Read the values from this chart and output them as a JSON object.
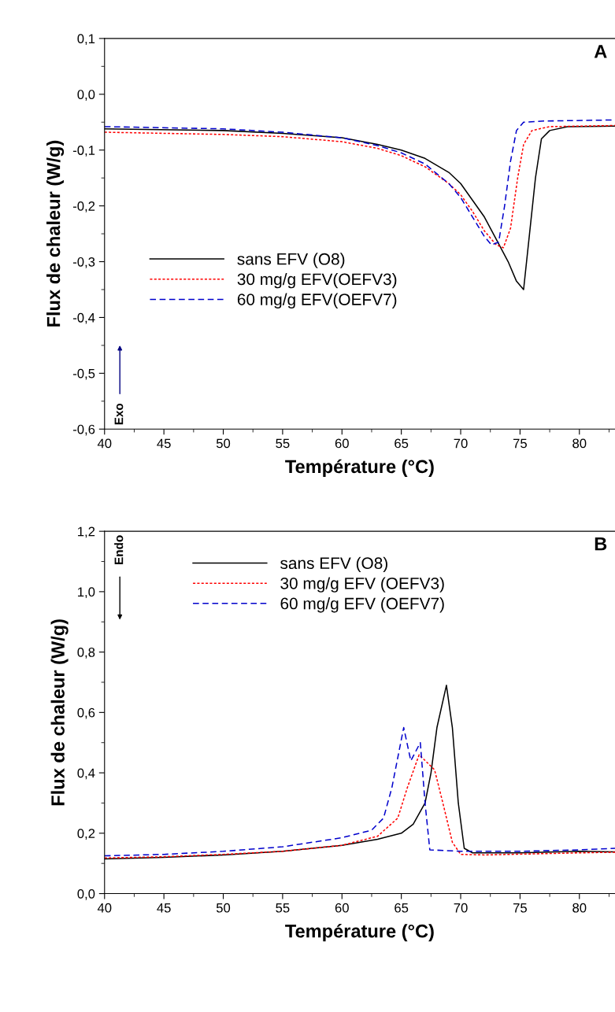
{
  "chart_data": [
    {
      "type": "line",
      "xlabel": "Température (°C)",
      "ylabel": "Flux de chaleur (W/g)",
      "xlim": [
        40,
        83
      ],
      "xticks": [
        40,
        45,
        50,
        55,
        60,
        65,
        70,
        75,
        80
      ],
      "ylim": [
        -0.6,
        0.1
      ],
      "yticks": [
        {
          "value": -0.6,
          "label": "-0,6"
        },
        {
          "value": -0.5,
          "label": "-0,5"
        },
        {
          "value": -0.4,
          "label": "-0,4"
        },
        {
          "value": -0.3,
          "label": "-0,3"
        },
        {
          "value": -0.2,
          "label": "-0,2"
        },
        {
          "value": -0.1,
          "label": "-0,1"
        },
        {
          "value": 0.0,
          "label": "0,0"
        },
        {
          "value": 0.1,
          "label": "0,1"
        }
      ],
      "legend": "center left",
      "grid": false,
      "annotations": [
        "A",
        "Exo"
      ],
      "series": [
        {
          "name": "sans EFV (O8)",
          "color": "#000000",
          "line_style": "solid",
          "x": [
            40,
            50,
            55,
            60,
            63,
            65,
            67,
            69,
            70,
            71,
            72,
            73,
            74,
            74.7,
            75.3,
            75.8,
            76.3,
            76.8,
            77.5,
            79,
            83
          ],
          "values": [
            -0.062,
            -0.065,
            -0.07,
            -0.078,
            -0.09,
            -0.1,
            -0.115,
            -0.14,
            -0.16,
            -0.19,
            -0.22,
            -0.26,
            -0.3,
            -0.335,
            -0.35,
            -0.25,
            -0.15,
            -0.08,
            -0.065,
            -0.058,
            -0.057
          ]
        },
        {
          "name": "30 mg/g EFV(OEFV3)",
          "color": "#ff0000",
          "line_style": "dotted",
          "x": [
            40,
            50,
            55,
            60,
            63,
            65,
            67,
            69,
            70,
            71,
            72,
            73,
            73.6,
            74.2,
            74.8,
            75.3,
            76,
            77.5,
            83
          ],
          "values": [
            -0.068,
            -0.072,
            -0.076,
            -0.085,
            -0.097,
            -0.11,
            -0.13,
            -0.16,
            -0.18,
            -0.21,
            -0.245,
            -0.27,
            -0.275,
            -0.24,
            -0.15,
            -0.09,
            -0.065,
            -0.058,
            -0.056
          ]
        },
        {
          "name": "60 mg/g EFV(OEFV7)",
          "color": "#0000cc",
          "line_style": "dashed",
          "x": [
            40,
            50,
            55,
            60,
            63,
            65,
            67,
            69,
            70,
            71,
            72,
            72.6,
            73.2,
            73.7,
            74.2,
            74.7,
            75.3,
            77,
            83
          ],
          "values": [
            -0.058,
            -0.062,
            -0.068,
            -0.078,
            -0.092,
            -0.105,
            -0.125,
            -0.16,
            -0.185,
            -0.22,
            -0.255,
            -0.27,
            -0.265,
            -0.2,
            -0.12,
            -0.065,
            -0.05,
            -0.048,
            -0.046
          ]
        }
      ]
    },
    {
      "type": "line",
      "xlabel": "Température (°C)",
      "ylabel": "Flux de chaleur (W/g)",
      "xlim": [
        40,
        83
      ],
      "xticks": [
        40,
        45,
        50,
        55,
        60,
        65,
        70,
        75,
        80
      ],
      "ylim": [
        0,
        1.2
      ],
      "yticks": [
        {
          "value": 0.0,
          "label": "0,0"
        },
        {
          "value": 0.2,
          "label": "0,2"
        },
        {
          "value": 0.4,
          "label": "0,4"
        },
        {
          "value": 0.6,
          "label": "0,6"
        },
        {
          "value": 0.8,
          "label": "0,8"
        },
        {
          "value": 1.0,
          "label": "1,0"
        },
        {
          "value": 1.2,
          "label": "1,2"
        }
      ],
      "legend": "top",
      "grid": false,
      "annotations": [
        "B",
        "Endo"
      ],
      "series": [
        {
          "name": "sans EFV (O8)",
          "color": "#000000",
          "line_style": "solid",
          "x": [
            40,
            45,
            50,
            55,
            60,
            63,
            65,
            66,
            67,
            67.5,
            68,
            68.8,
            69.3,
            69.8,
            70.3,
            71,
            75,
            80,
            83
          ],
          "values": [
            0.115,
            0.12,
            0.128,
            0.14,
            0.16,
            0.18,
            0.2,
            0.23,
            0.3,
            0.4,
            0.55,
            0.69,
            0.55,
            0.3,
            0.15,
            0.135,
            0.135,
            0.14,
            0.138
          ]
        },
        {
          "name": "30 mg/g EFV (OEFV3)",
          "color": "#ff0000",
          "line_style": "dotted",
          "x": [
            40,
            45,
            50,
            55,
            60,
            63,
            64.7,
            65.5,
            66.5,
            67.8,
            68.5,
            69.3,
            70,
            72,
            80,
            83
          ],
          "values": [
            0.118,
            0.122,
            0.13,
            0.14,
            0.16,
            0.19,
            0.25,
            0.35,
            0.46,
            0.41,
            0.3,
            0.17,
            0.13,
            0.128,
            0.135,
            0.137
          ]
        },
        {
          "name": "60 mg/g EFV (OEFV7)",
          "color": "#0000cc",
          "line_style": "dashed",
          "x": [
            40,
            45,
            50,
            55,
            60,
            62.5,
            63.5,
            64.2,
            65.2,
            65.8,
            66.6,
            67,
            67.4,
            70,
            75,
            80,
            83
          ],
          "values": [
            0.125,
            0.13,
            0.14,
            0.155,
            0.185,
            0.21,
            0.25,
            0.35,
            0.55,
            0.44,
            0.5,
            0.3,
            0.145,
            0.14,
            0.14,
            0.145,
            0.15
          ]
        }
      ]
    }
  ]
}
